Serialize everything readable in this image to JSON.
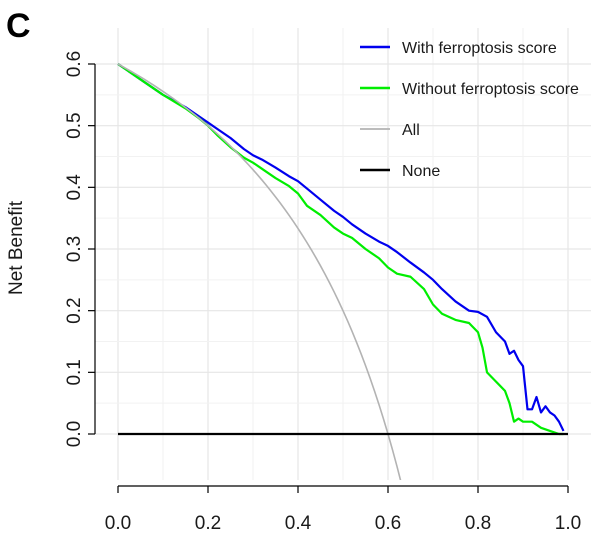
{
  "panel_label": "C",
  "chart_data": {
    "type": "line",
    "title": "",
    "xlabel": "",
    "ylabel": "Net Benefit",
    "xlim": [
      0.0,
      1.0
    ],
    "ylim": [
      -0.08,
      0.62
    ],
    "x_ticks": [
      "0.0",
      "0.2",
      "0.4",
      "0.6",
      "0.8",
      "1.0"
    ],
    "y_ticks": [
      "0.0",
      "0.1",
      "0.2",
      "0.3",
      "0.4",
      "0.5",
      "0.6"
    ],
    "grid": true,
    "legend_position": "top-right",
    "series": [
      {
        "name": "With ferroptosis score",
        "color": "#0000ee",
        "x": [
          0.0,
          0.05,
          0.1,
          0.15,
          0.18,
          0.2,
          0.22,
          0.25,
          0.28,
          0.3,
          0.32,
          0.35,
          0.38,
          0.4,
          0.42,
          0.45,
          0.48,
          0.5,
          0.52,
          0.55,
          0.58,
          0.6,
          0.62,
          0.65,
          0.68,
          0.7,
          0.72,
          0.75,
          0.78,
          0.8,
          0.82,
          0.84,
          0.86,
          0.87,
          0.88,
          0.89,
          0.9,
          0.91,
          0.92,
          0.93,
          0.94,
          0.95,
          0.96,
          0.97,
          0.98,
          0.99
        ],
        "values": [
          0.6,
          0.575,
          0.55,
          0.53,
          0.515,
          0.505,
          0.495,
          0.48,
          0.462,
          0.452,
          0.445,
          0.432,
          0.418,
          0.41,
          0.398,
          0.38,
          0.362,
          0.352,
          0.34,
          0.325,
          0.312,
          0.305,
          0.295,
          0.278,
          0.262,
          0.25,
          0.235,
          0.215,
          0.2,
          0.198,
          0.19,
          0.165,
          0.15,
          0.13,
          0.135,
          0.12,
          0.11,
          0.04,
          0.04,
          0.06,
          0.035,
          0.045,
          0.035,
          0.03,
          0.02,
          0.005
        ]
      },
      {
        "name": "Without ferroptosis score",
        "color": "#00ee00",
        "x": [
          0.0,
          0.05,
          0.1,
          0.15,
          0.18,
          0.2,
          0.22,
          0.25,
          0.28,
          0.3,
          0.32,
          0.35,
          0.38,
          0.4,
          0.42,
          0.45,
          0.48,
          0.5,
          0.52,
          0.55,
          0.58,
          0.6,
          0.62,
          0.65,
          0.68,
          0.7,
          0.72,
          0.75,
          0.78,
          0.8,
          0.81,
          0.82,
          0.84,
          0.86,
          0.87,
          0.88,
          0.89,
          0.9,
          0.91,
          0.92,
          0.94,
          0.96,
          0.98,
          0.99
        ],
        "values": [
          0.6,
          0.575,
          0.55,
          0.528,
          0.512,
          0.5,
          0.485,
          0.465,
          0.448,
          0.44,
          0.43,
          0.415,
          0.402,
          0.39,
          0.37,
          0.355,
          0.335,
          0.325,
          0.318,
          0.3,
          0.285,
          0.27,
          0.26,
          0.255,
          0.235,
          0.21,
          0.195,
          0.185,
          0.18,
          0.165,
          0.14,
          0.1,
          0.085,
          0.07,
          0.05,
          0.02,
          0.025,
          0.02,
          0.02,
          0.02,
          0.01,
          0.005,
          0.0,
          0.0
        ]
      },
      {
        "name": "All",
        "color": "#b3b3b3",
        "type": "treat-all",
        "prevalence": 0.6
      },
      {
        "name": "None",
        "color": "#000000",
        "x": [
          0.0,
          1.0
        ],
        "values": [
          0.0,
          0.0
        ]
      }
    ]
  }
}
